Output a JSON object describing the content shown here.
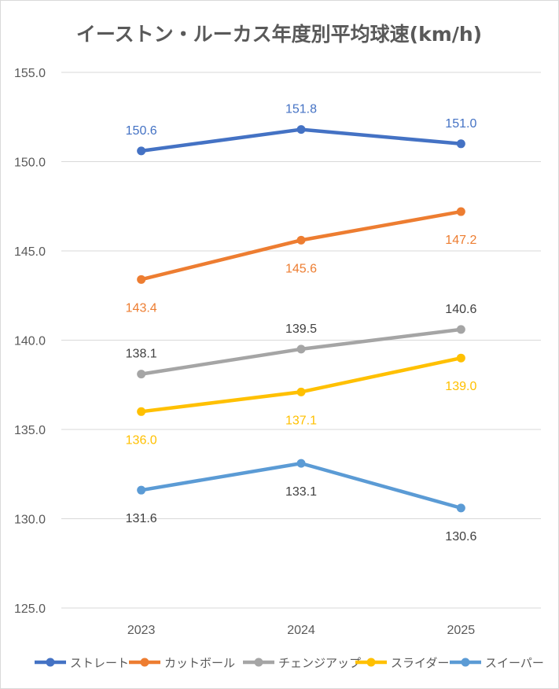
{
  "chart_data": {
    "type": "line",
    "title": "イーストン・ルーカス年度別平均球速(km/h)",
    "categories": [
      "2023",
      "2024",
      "2025"
    ],
    "ylim": [
      125.0,
      155.0
    ],
    "yticks": [
      125.0,
      130.0,
      135.0,
      140.0,
      145.0,
      150.0,
      155.0
    ],
    "ytick_labels": [
      "125.0",
      "130.0",
      "135.0",
      "140.0",
      "145.0",
      "150.0",
      "155.0"
    ],
    "grid": true,
    "legend_position": "bottom",
    "series": [
      {
        "name": "ストレート",
        "values": [
          150.6,
          151.8,
          151.0
        ],
        "labels": [
          "150.6",
          "151.8",
          "151.0"
        ],
        "color": "#4472C4",
        "label_color": "#4472C4",
        "label_pos": [
          "above",
          "above",
          "above"
        ]
      },
      {
        "name": "カットボール",
        "values": [
          143.4,
          145.6,
          147.2
        ],
        "labels": [
          "143.4",
          "145.6",
          "147.2"
        ],
        "color": "#ED7D31",
        "label_color": "#ED7D31",
        "label_pos": [
          "below",
          "below",
          "below"
        ]
      },
      {
        "name": "チェンジアップ",
        "values": [
          138.1,
          139.5,
          140.6
        ],
        "labels": [
          "138.1",
          "139.5",
          "140.6"
        ],
        "color": "#A5A5A5",
        "label_color": "#404040",
        "label_pos": [
          "above",
          "above",
          "above"
        ]
      },
      {
        "name": "スライダー",
        "values": [
          136.0,
          137.1,
          139.0
        ],
        "labels": [
          "136.0",
          "137.1",
          "139.0"
        ],
        "color": "#FFC000",
        "label_color": "#FFC000",
        "label_pos": [
          "below",
          "below",
          "below"
        ]
      },
      {
        "name": "スイーパー",
        "values": [
          131.6,
          133.1,
          130.6
        ],
        "labels": [
          "131.6",
          "133.1",
          "130.6"
        ],
        "color": "#5B9BD5",
        "label_color": "#404040",
        "label_pos": [
          "below",
          "below",
          "below"
        ]
      }
    ]
  }
}
